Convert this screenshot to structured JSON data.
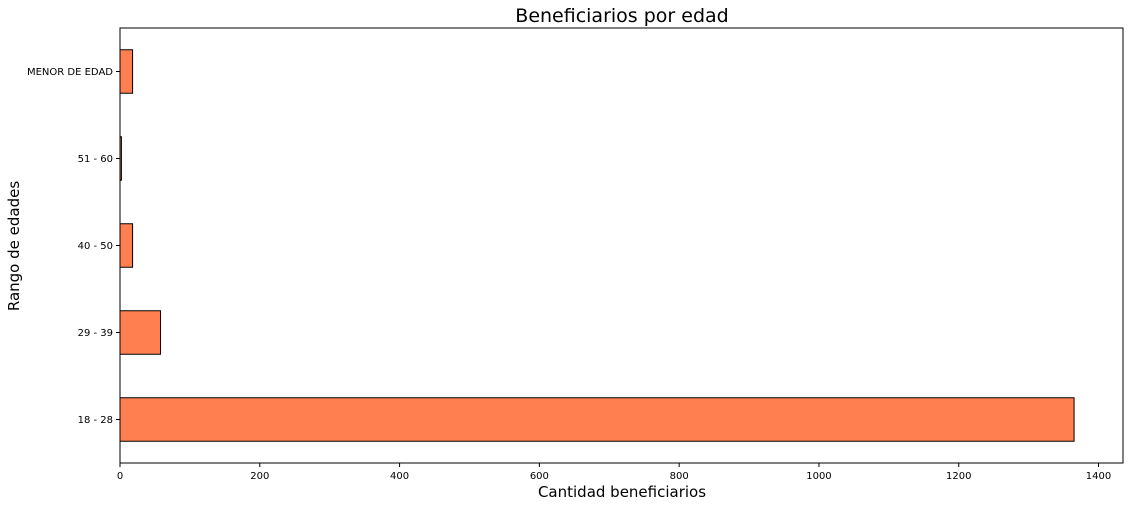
{
  "chart_data": {
    "type": "bar",
    "orientation": "horizontal",
    "title": "Beneficiarios por edad",
    "xlabel": "Cantidad beneficiarios",
    "ylabel": "Rango de edades",
    "categories": [
      "18 - 28",
      "29 - 39",
      "40 - 50",
      "51 - 60",
      "MENOR DE EDAD"
    ],
    "values": [
      1365,
      58,
      18,
      2,
      18
    ],
    "xlim": [
      0,
      1435
    ],
    "xticks": [
      0,
      200,
      400,
      600,
      800,
      1000,
      1200,
      1400
    ],
    "grid": false,
    "legend": "none",
    "bar_color": "#ff7f50",
    "bar_edge_color": "#000000"
  }
}
